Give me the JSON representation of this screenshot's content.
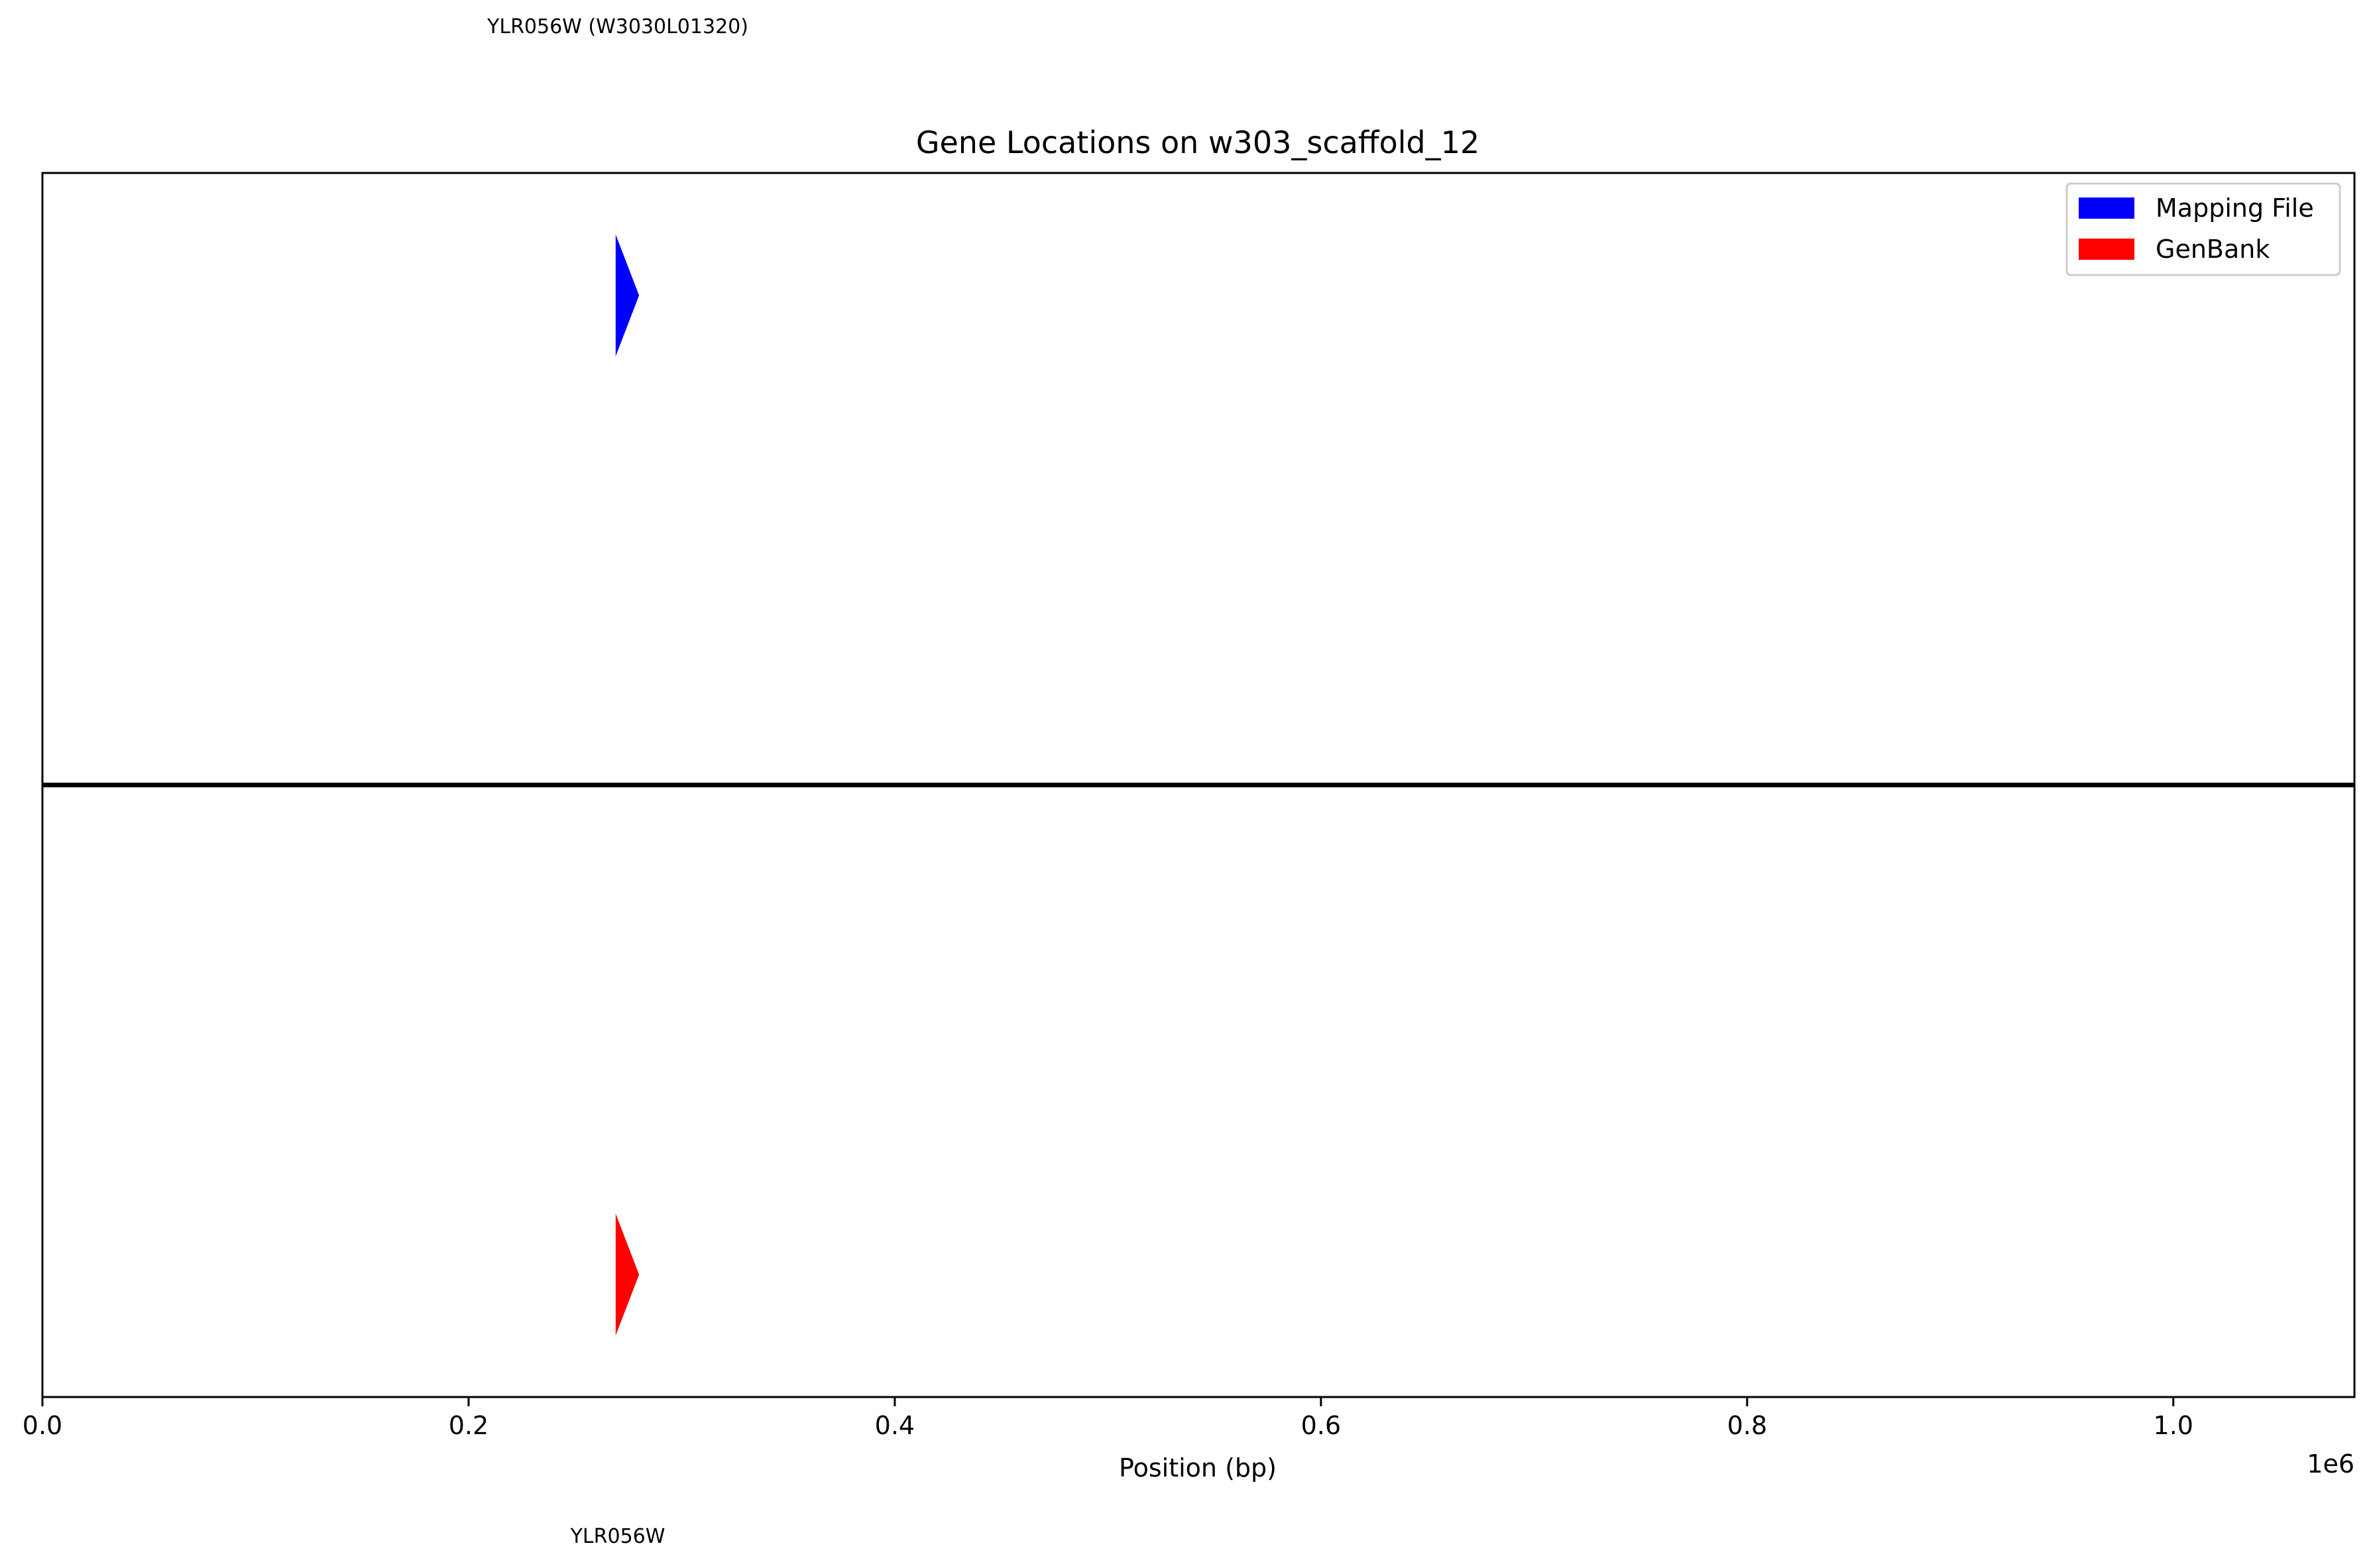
{
  "chart_data": {
    "type": "gene-track",
    "title": "Gene Locations on w303_scaffold_12",
    "xlabel": "Position (bp)",
    "x_offset_label": "1e6",
    "xlim": [
      0,
      1085000
    ],
    "ylim": [
      -1,
      1
    ],
    "xticks": [
      0,
      200000,
      400000,
      600000,
      800000,
      1000000
    ],
    "xtick_labels": [
      "0.0",
      "0.2",
      "0.4",
      "0.6",
      "0.8",
      "1.0"
    ],
    "grid": false,
    "legend_position": "top-right",
    "legend": [
      {
        "label": "Mapping File",
        "color": "#0000ff"
      },
      {
        "label": "GenBank",
        "color": "#ff0000"
      }
    ],
    "series": [
      {
        "name": "Mapping File",
        "color": "#0000ff",
        "track_y": 0.8,
        "genes": [
          {
            "label": "YLR056W (W3030L01320)",
            "start": 269000,
            "end": 280000,
            "strand": "+"
          }
        ]
      },
      {
        "name": "GenBank",
        "color": "#ff0000",
        "track_y": -0.8,
        "genes": [
          {
            "label": "YLR056W",
            "start": 269000,
            "end": 280000,
            "strand": "+"
          }
        ]
      }
    ],
    "divider_y": 0
  }
}
